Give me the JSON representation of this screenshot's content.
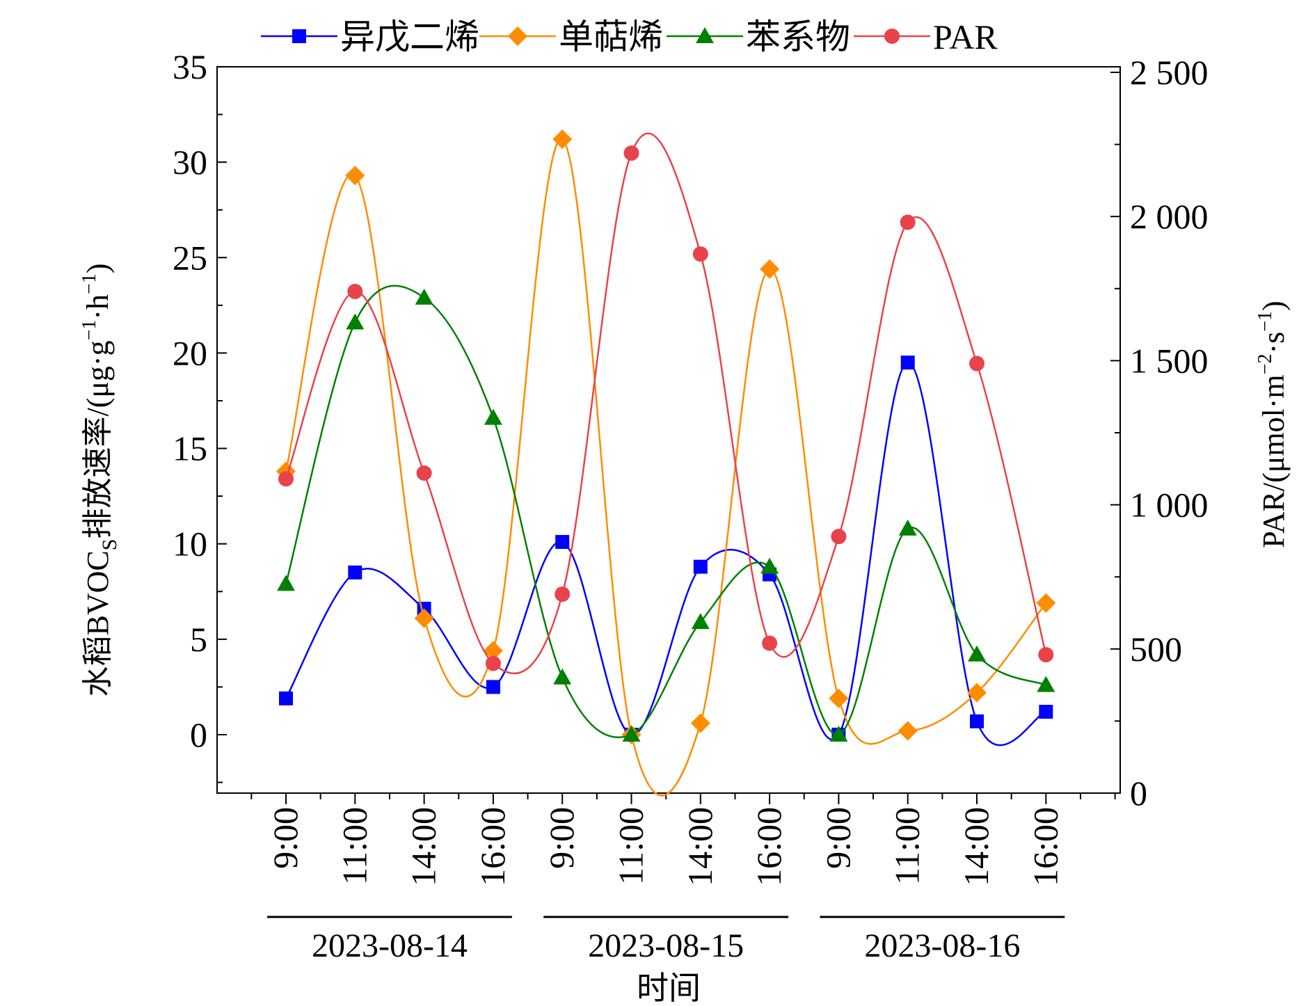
{
  "chart_data": {
    "type": "line",
    "xlabel": "时间",
    "ylabel": "水稻BVOCs排放速率/(μg·g⁻¹·h⁻¹)",
    "ylabel_main": "水稻BVOC",
    "ylabel_sub": "S",
    "ylabel_rest": "排放速率/(μg·g",
    "ylabel_sup1": "−1",
    "ylabel_mid": "·h",
    "ylabel_sup2": "−1",
    "ylabel_end": ")",
    "y2label": "PAR/(μmol·m⁻²·s⁻¹)",
    "y2label_main": "PAR/(μmol·m",
    "y2label_sup1": "−2",
    "y2label_mid": "·s",
    "y2label_sup2": "−1",
    "y2label_end": ")",
    "ylim": [
      -3,
      35
    ],
    "y2lim": [
      0,
      2500
    ],
    "y_ticks": [
      "0",
      "5",
      "10",
      "15",
      "20",
      "25",
      "30",
      "35"
    ],
    "y2_ticks": [
      "0",
      "500",
      "1 000",
      "1 500",
      "2 000",
      "2 500"
    ],
    "x_categories": [
      "9:00",
      "11:00",
      "14:00",
      "16:00",
      "9:00",
      "11:00",
      "14:00",
      "16:00",
      "9:00",
      "11:00",
      "14:00",
      "16:00"
    ],
    "groups": [
      {
        "label": "2023-08-14",
        "range": [
          0,
          3
        ]
      },
      {
        "label": "2023-08-15",
        "range": [
          4,
          7
        ]
      },
      {
        "label": "2023-08-16",
        "range": [
          8,
          11
        ]
      }
    ],
    "legend_position": "top",
    "series": [
      {
        "name": "异戊二烯",
        "axis": "left",
        "marker": "square",
        "color": "#0000ff",
        "values": [
          1.9,
          8.5,
          6.6,
          2.5,
          10.1,
          0.0,
          8.8,
          8.4,
          0.0,
          19.5,
          0.7,
          1.2
        ]
      },
      {
        "name": "单萜烯",
        "axis": "left",
        "marker": "diamond",
        "color": "#ff8c00",
        "values": [
          13.8,
          29.3,
          6.1,
          4.4,
          31.2,
          0.0,
          0.6,
          24.4,
          1.9,
          0.2,
          2.2,
          6.9
        ]
      },
      {
        "name": "苯系物",
        "axis": "left",
        "marker": "triangle",
        "color": "#008000",
        "values": [
          7.9,
          21.6,
          22.9,
          16.6,
          3.0,
          0.0,
          5.9,
          8.8,
          0.0,
          10.8,
          4.2,
          2.6
        ]
      },
      {
        "name": "PAR",
        "axis": "right",
        "marker": "circle",
        "color": "#e8434a",
        "values": [
          1090,
          1740,
          1110,
          450,
          690,
          2220,
          1870,
          520,
          890,
          1980,
          1490,
          480
        ]
      }
    ]
  }
}
